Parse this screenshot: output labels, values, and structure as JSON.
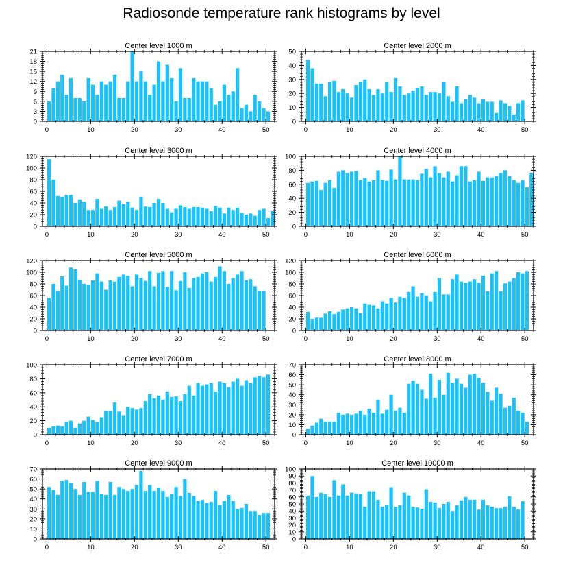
{
  "figure": {
    "title": "Radiosonde temperature rank histograms by level"
  },
  "colors": {
    "bar": "#1ec0f5",
    "axis": "#000000"
  },
  "chart_data": [
    {
      "type": "bar",
      "title": "Center level 1000 m",
      "xticks": [
        0,
        10,
        20,
        30,
        40,
        50
      ],
      "xlim": [
        -1,
        52
      ],
      "yticks": [
        0,
        3,
        6,
        9,
        12,
        15,
        18,
        21
      ],
      "ylim": [
        0,
        21
      ],
      "values": [
        6,
        10,
        12,
        14,
        8,
        13,
        7,
        7,
        6,
        13,
        11,
        8,
        12,
        11,
        12,
        14,
        7,
        7,
        12,
        21,
        12,
        15,
        12,
        8,
        11,
        18,
        12,
        17,
        13,
        6,
        16,
        7,
        7,
        13,
        12,
        12,
        12,
        10,
        5,
        6,
        11,
        8,
        9,
        16,
        4,
        5,
        3,
        8,
        6,
        4,
        3
      ]
    },
    {
      "type": "bar",
      "title": "Center level 2000 m",
      "xticks": [
        0,
        10,
        20,
        30,
        40,
        50
      ],
      "xlim": [
        -1,
        52
      ],
      "yticks": [
        0,
        10,
        20,
        30,
        40,
        50
      ],
      "ylim": [
        0,
        50
      ],
      "values": [
        44,
        38,
        27,
        27,
        18,
        28,
        29,
        21,
        23,
        20,
        17,
        26,
        28,
        30,
        23,
        19,
        23,
        20,
        28,
        21,
        31,
        25,
        19,
        20,
        22,
        24,
        25,
        19,
        21,
        21,
        20,
        28,
        18,
        14,
        25,
        13,
        16,
        19,
        17,
        13,
        16,
        14,
        14,
        6,
        15,
        13,
        11,
        5,
        13,
        15
      ]
    },
    {
      "type": "bar",
      "title": "Center level 3000 m",
      "xticks": [
        0,
        10,
        20,
        30,
        40,
        50
      ],
      "xlim": [
        -1,
        52
      ],
      "yticks": [
        0,
        20,
        40,
        60,
        80,
        100,
        120
      ],
      "ylim": [
        0,
        120
      ],
      "values": [
        115,
        80,
        52,
        50,
        54,
        54,
        40,
        46,
        42,
        28,
        28,
        47,
        30,
        34,
        28,
        33,
        44,
        38,
        42,
        32,
        28,
        50,
        34,
        33,
        40,
        47,
        40,
        30,
        24,
        30,
        36,
        33,
        30,
        33,
        33,
        32,
        30,
        26,
        35,
        32,
        22,
        32,
        28,
        32,
        23,
        20,
        22,
        18,
        28,
        30,
        14,
        26
      ]
    },
    {
      "type": "bar",
      "title": "Center level 4000 m",
      "xticks": [
        0,
        10,
        20,
        30,
        40,
        50
      ],
      "xlim": [
        -1,
        52
      ],
      "yticks": [
        0,
        20,
        40,
        60,
        80,
        100
      ],
      "ylim": [
        0,
        100
      ],
      "values": [
        62,
        64,
        65,
        52,
        62,
        66,
        55,
        78,
        80,
        76,
        78,
        79,
        66,
        69,
        64,
        66,
        80,
        66,
        65,
        81,
        67,
        100,
        67,
        67,
        67,
        66,
        75,
        82,
        70,
        86,
        76,
        70,
        78,
        64,
        73,
        86,
        86,
        64,
        66,
        78,
        65,
        70,
        70,
        72,
        76,
        80,
        72,
        66,
        62,
        66,
        56,
        76
      ]
    },
    {
      "type": "bar",
      "title": "Center level 5000 m",
      "xticks": [
        0,
        10,
        20,
        30,
        40,
        50
      ],
      "xlim": [
        -1,
        52
      ],
      "yticks": [
        0,
        20,
        40,
        60,
        80,
        100,
        120
      ],
      "ylim": [
        0,
        120
      ],
      "values": [
        56,
        80,
        68,
        93,
        77,
        108,
        105,
        87,
        80,
        78,
        86,
        98,
        84,
        70,
        86,
        84,
        92,
        96,
        94,
        76,
        96,
        90,
        85,
        102,
        76,
        99,
        102,
        75,
        102,
        69,
        85,
        100,
        73,
        90,
        92,
        98,
        100,
        84,
        92,
        110,
        102,
        80,
        90,
        96,
        102,
        86,
        88,
        76,
        68,
        68
      ]
    },
    {
      "type": "bar",
      "title": "Center level 6000 m",
      "xticks": [
        0,
        10,
        20,
        30,
        40,
        50
      ],
      "xlim": [
        -1,
        52
      ],
      "yticks": [
        0,
        20,
        40,
        60,
        80,
        100,
        120
      ],
      "ylim": [
        0,
        120
      ],
      "values": [
        32,
        20,
        22,
        22,
        29,
        33,
        28,
        32,
        36,
        38,
        40,
        38,
        30,
        46,
        44,
        43,
        38,
        50,
        46,
        56,
        48,
        58,
        56,
        66,
        76,
        58,
        64,
        60,
        50,
        66,
        90,
        62,
        62,
        88,
        96,
        84,
        82,
        84,
        88,
        82,
        94,
        67,
        98,
        102,
        67,
        81,
        84,
        90,
        100,
        98,
        102
      ]
    },
    {
      "type": "bar",
      "title": "Center level 7000 m",
      "xticks": [
        0,
        10,
        20,
        30,
        40,
        50
      ],
      "xlim": [
        -1,
        52
      ],
      "yticks": [
        0,
        20,
        40,
        60,
        80,
        100
      ],
      "ylim": [
        0,
        100
      ],
      "values": [
        10,
        12,
        13,
        12,
        18,
        20,
        10,
        16,
        20,
        26,
        21,
        18,
        25,
        34,
        34,
        46,
        33,
        28,
        40,
        38,
        36,
        38,
        48,
        58,
        52,
        56,
        50,
        62,
        54,
        55,
        48,
        58,
        70,
        56,
        74,
        70,
        72,
        74,
        62,
        76,
        74,
        68,
        76,
        80,
        70,
        78,
        74,
        82,
        84,
        82,
        86
      ]
    },
    {
      "type": "bar",
      "title": "Center level 8000 m",
      "xticks": [
        0,
        10,
        20,
        30,
        40,
        50
      ],
      "xlim": [
        -1,
        52
      ],
      "yticks": [
        0,
        10,
        20,
        30,
        40,
        50,
        60,
        70
      ],
      "ylim": [
        0,
        70
      ],
      "values": [
        6,
        9,
        12,
        16,
        13,
        13,
        13,
        22,
        20,
        21,
        20,
        21,
        24,
        20,
        26,
        22,
        35,
        21,
        25,
        40,
        24,
        27,
        22,
        51,
        54,
        51,
        45,
        36,
        61,
        37,
        55,
        40,
        62,
        52,
        56,
        51,
        47,
        60,
        61,
        57,
        52,
        43,
        34,
        47,
        41,
        27,
        29,
        37,
        24,
        22,
        13
      ]
    },
    {
      "type": "bar",
      "title": "Center level 9000 m",
      "xticks": [
        0,
        10,
        20,
        30,
        40,
        50
      ],
      "xlim": [
        -1,
        52
      ],
      "yticks": [
        0,
        10,
        20,
        30,
        40,
        50,
        60,
        70
      ],
      "ylim": [
        0,
        70
      ],
      "values": [
        52,
        49,
        44,
        58,
        59,
        56,
        50,
        44,
        57,
        47,
        47,
        58,
        45,
        44,
        57,
        44,
        52,
        50,
        48,
        50,
        54,
        68,
        48,
        54,
        48,
        51,
        48,
        42,
        45,
        52,
        43,
        60,
        46,
        43,
        38,
        39,
        36,
        37,
        48,
        34,
        38,
        44,
        38,
        30,
        31,
        35,
        28,
        28,
        24,
        26,
        26
      ]
    },
    {
      "type": "bar",
      "title": "Center level 10000 m",
      "xticks": [
        0,
        10,
        20,
        30,
        40,
        50
      ],
      "xlim": [
        -1,
        52
      ],
      "yticks": [
        0,
        10,
        20,
        30,
        40,
        50,
        60,
        70,
        80,
        90,
        100
      ],
      "ylim": [
        0,
        100
      ],
      "values": [
        62,
        90,
        60,
        66,
        64,
        60,
        84,
        62,
        78,
        62,
        66,
        65,
        64,
        46,
        68,
        68,
        56,
        46,
        49,
        74,
        46,
        48,
        66,
        62,
        46,
        45,
        43,
        71,
        53,
        52,
        44,
        50,
        53,
        40,
        48,
        55,
        60,
        56,
        56,
        42,
        56,
        48,
        46,
        44,
        44,
        46,
        61,
        46,
        42,
        54
      ]
    }
  ]
}
